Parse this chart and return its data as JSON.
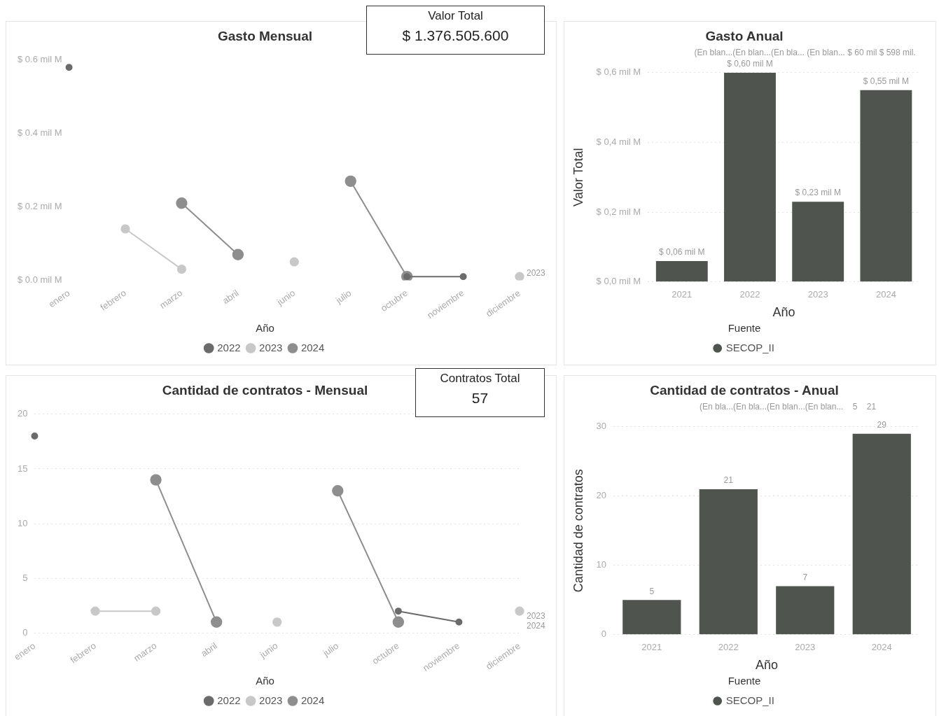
{
  "chart_data": [
    {
      "type": "line",
      "title": "Gasto Mensual",
      "legend_title": "Año",
      "legend": "bottom",
      "marker": "circle",
      "grid": false,
      "categories": [
        "enero",
        "febrero",
        "marzo",
        "abril",
        "junio",
        "julio",
        "octubre",
        "noviembre",
        "diciembre"
      ],
      "ylim": [
        0,
        0.6
      ],
      "yticks": [
        {
          "value": 0,
          "label": "$ 0.0 mil M"
        },
        {
          "value": 0.2,
          "label": "$ 0.2 mil M"
        },
        {
          "value": 0.4,
          "label": "$ 0.4 mil M"
        },
        {
          "value": 0.6,
          "label": "$ 0.6 mil M"
        }
      ],
      "annotations": [
        "2023"
      ],
      "series": [
        {
          "name": "2022",
          "color": "#6b6b6b",
          "values": [
            0.58,
            null,
            null,
            null,
            null,
            null,
            0.01,
            0.01,
            null
          ]
        },
        {
          "name": "2023",
          "color": "#c8c8c8",
          "values": [
            null,
            0.14,
            0.03,
            null,
            0.05,
            null,
            null,
            null,
            0.01
          ]
        },
        {
          "name": "2024",
          "color": "#8e8e8e",
          "values": [
            null,
            null,
            0.21,
            0.07,
            null,
            0.27,
            0.01,
            null,
            null
          ]
        }
      ]
    },
    {
      "type": "other",
      "title": "Valor Total",
      "annotations": [
        "$ 1.376.505.600"
      ]
    },
    {
      "type": "bar",
      "title": "Gasto Anual",
      "xlabel": "Año",
      "ylabel": "Valor Total",
      "legend_title": "Fuente",
      "legend": "bottom",
      "grid": "y",
      "categories": [
        "2021",
        "2022",
        "2023",
        "2024"
      ],
      "ylim": [
        0,
        0.6
      ],
      "yticks": [
        {
          "value": 0,
          "label": "$ 0,0 mil M"
        },
        {
          "value": 0.2,
          "label": "$ 0,2 mil M"
        },
        {
          "value": 0.4,
          "label": "$ 0,4 mil M"
        },
        {
          "value": 0.6,
          "label": "$ 0,6 mil M"
        }
      ],
      "annotations": [
        "(En blan...(En blan...(En bla... (En blan... $ 60 mil $ 598 mil."
      ],
      "series": [
        {
          "name": "SECOP_II",
          "color": "#4f544f",
          "values": [
            0.06,
            0.6,
            0.23,
            0.55
          ],
          "value_labels": [
            "$ 0,06 mil M",
            "$ 0,60 mil M",
            "$ 0,23 mil M",
            "$ 0,55 mil M"
          ]
        }
      ]
    },
    {
      "type": "line",
      "title": "Cantidad de contratos - Mensual",
      "legend_title": "Año",
      "legend": "bottom",
      "marker": "circle",
      "grid": "y",
      "categories": [
        "enero",
        "febrero",
        "marzo",
        "abril",
        "junio",
        "julio",
        "octubre",
        "noviembre",
        "diciembre"
      ],
      "ylim": [
        0,
        20
      ],
      "yticks": [
        0,
        5,
        10,
        15,
        20
      ],
      "annotations": [
        "2023",
        "2024"
      ],
      "series": [
        {
          "name": "2022",
          "color": "#6b6b6b",
          "values": [
            18,
            null,
            null,
            null,
            null,
            null,
            2,
            1,
            null
          ]
        },
        {
          "name": "2023",
          "color": "#c8c8c8",
          "values": [
            null,
            2,
            2,
            null,
            1,
            null,
            null,
            null,
            2
          ]
        },
        {
          "name": "2024",
          "color": "#8e8e8e",
          "values": [
            null,
            null,
            14,
            1,
            null,
            13,
            1,
            null,
            null
          ]
        }
      ]
    },
    {
      "type": "other",
      "title": "Contratos Total",
      "annotations": [
        "57"
      ]
    },
    {
      "type": "bar",
      "title": "Cantidad de contratos - Anual",
      "xlabel": "Año",
      "ylabel": "Cantidad de contratos",
      "legend_title": "Fuente",
      "legend": "bottom",
      "grid": "y",
      "data_labels": true,
      "categories": [
        "2021",
        "2022",
        "2023",
        "2024"
      ],
      "ylim": [
        0,
        30
      ],
      "yticks": [
        0,
        10,
        20,
        30
      ],
      "annotations": [
        "(En bla...(En bla...(En blan...(En blan...    5    21"
      ],
      "series": [
        {
          "name": "SECOP_II",
          "color": "#4f544f",
          "values": [
            5,
            21,
            7,
            29
          ]
        }
      ]
    }
  ]
}
